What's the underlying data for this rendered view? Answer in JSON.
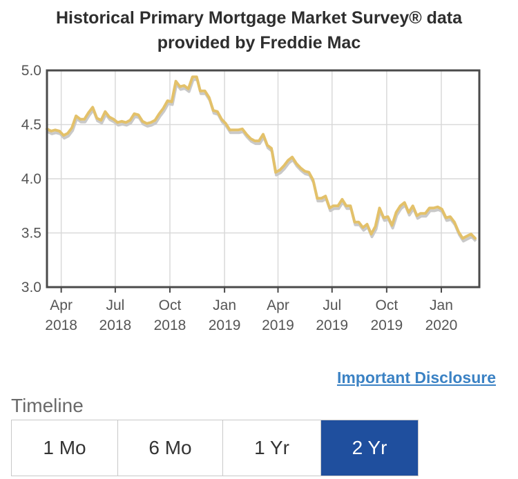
{
  "header": {
    "title_line1": "Historical Primary Mortgage Market Survey® data",
    "title_line2": "provided by Freddie Mac"
  },
  "disclosure_link": "Important Disclosure",
  "timeline": {
    "label": "Timeline",
    "options": [
      {
        "label": "1 Mo",
        "active": false
      },
      {
        "label": "6 Mo",
        "active": false
      },
      {
        "label": "1 Yr",
        "active": false
      },
      {
        "label": "2 Yr",
        "active": true
      }
    ],
    "active_color": "#1f4f9e"
  },
  "chart_data": {
    "type": "line",
    "title": "",
    "xlabel": "",
    "ylabel": "",
    "ylim": [
      3.0,
      5.0
    ],
    "yticks": [
      "5.0",
      "4.5",
      "4.0",
      "3.5",
      "3.0"
    ],
    "xticks": [
      {
        "line1": "Apr",
        "line2": "2018",
        "date": "2018-04-01"
      },
      {
        "line1": "Jul",
        "line2": "2018",
        "date": "2018-07-01"
      },
      {
        "line1": "Oct",
        "line2": "2018",
        "date": "2018-10-01"
      },
      {
        "line1": "Jan",
        "line2": "2019",
        "date": "2019-01-01"
      },
      {
        "line1": "Apr",
        "line2": "2019",
        "date": "2019-04-01"
      },
      {
        "line1": "Jul",
        "line2": "2019",
        "date": "2019-07-01"
      },
      {
        "line1": "Oct",
        "line2": "2019",
        "date": "2019-10-01"
      },
      {
        "line1": "Jan",
        "line2": "2020",
        "date": "2020-01-01"
      }
    ],
    "xlim": [
      "2018-03-08",
      "2020-03-05"
    ],
    "grid": true,
    "line_color": "#e3c16a",
    "series": [
      {
        "name": "",
        "values": [
          [
            "2018-03-08",
            4.46
          ],
          [
            "2018-03-15",
            4.44
          ],
          [
            "2018-03-22",
            4.45
          ],
          [
            "2018-03-29",
            4.44
          ],
          [
            "2018-04-05",
            4.4
          ],
          [
            "2018-04-12",
            4.42
          ],
          [
            "2018-04-19",
            4.47
          ],
          [
            "2018-04-26",
            4.58
          ],
          [
            "2018-05-03",
            4.55
          ],
          [
            "2018-05-10",
            4.55
          ],
          [
            "2018-05-17",
            4.61
          ],
          [
            "2018-05-24",
            4.66
          ],
          [
            "2018-05-31",
            4.56
          ],
          [
            "2018-06-07",
            4.54
          ],
          [
            "2018-06-14",
            4.62
          ],
          [
            "2018-06-21",
            4.57
          ],
          [
            "2018-06-28",
            4.55
          ],
          [
            "2018-07-05",
            4.52
          ],
          [
            "2018-07-12",
            4.53
          ],
          [
            "2018-07-19",
            4.52
          ],
          [
            "2018-07-26",
            4.54
          ],
          [
            "2018-08-02",
            4.6
          ],
          [
            "2018-08-09",
            4.59
          ],
          [
            "2018-08-16",
            4.53
          ],
          [
            "2018-08-23",
            4.51
          ],
          [
            "2018-08-30",
            4.52
          ],
          [
            "2018-09-06",
            4.54
          ],
          [
            "2018-09-13",
            4.6
          ],
          [
            "2018-09-20",
            4.65
          ],
          [
            "2018-09-27",
            4.72
          ],
          [
            "2018-10-04",
            4.71
          ],
          [
            "2018-10-11",
            4.9
          ],
          [
            "2018-10-18",
            4.85
          ],
          [
            "2018-10-25",
            4.86
          ],
          [
            "2018-11-01",
            4.83
          ],
          [
            "2018-11-08",
            4.94
          ],
          [
            "2018-11-15",
            4.94
          ],
          [
            "2018-11-21",
            4.81
          ],
          [
            "2018-11-29",
            4.81
          ],
          [
            "2018-12-06",
            4.75
          ],
          [
            "2018-12-13",
            4.63
          ],
          [
            "2018-12-20",
            4.62
          ],
          [
            "2018-12-27",
            4.55
          ],
          [
            "2019-01-03",
            4.51
          ],
          [
            "2019-01-10",
            4.45
          ],
          [
            "2019-01-17",
            4.45
          ],
          [
            "2019-01-24",
            4.45
          ],
          [
            "2019-01-31",
            4.46
          ],
          [
            "2019-02-07",
            4.41
          ],
          [
            "2019-02-14",
            4.37
          ],
          [
            "2019-02-21",
            4.35
          ],
          [
            "2019-02-28",
            4.35
          ],
          [
            "2019-03-07",
            4.41
          ],
          [
            "2019-03-14",
            4.31
          ],
          [
            "2019-03-21",
            4.28
          ],
          [
            "2019-03-28",
            4.06
          ],
          [
            "2019-04-04",
            4.08
          ],
          [
            "2019-04-11",
            4.12
          ],
          [
            "2019-04-18",
            4.17
          ],
          [
            "2019-04-25",
            4.2
          ],
          [
            "2019-05-02",
            4.14
          ],
          [
            "2019-05-09",
            4.1
          ],
          [
            "2019-05-16",
            4.07
          ],
          [
            "2019-05-23",
            4.06
          ],
          [
            "2019-05-30",
            3.99
          ],
          [
            "2019-06-06",
            3.82
          ],
          [
            "2019-06-13",
            3.82
          ],
          [
            "2019-06-20",
            3.84
          ],
          [
            "2019-06-27",
            3.73
          ],
          [
            "2019-07-03",
            3.75
          ],
          [
            "2019-07-11",
            3.75
          ],
          [
            "2019-07-18",
            3.81
          ],
          [
            "2019-07-25",
            3.75
          ],
          [
            "2019-08-01",
            3.75
          ],
          [
            "2019-08-08",
            3.6
          ],
          [
            "2019-08-15",
            3.6
          ],
          [
            "2019-08-22",
            3.55
          ],
          [
            "2019-08-29",
            3.58
          ],
          [
            "2019-09-05",
            3.49
          ],
          [
            "2019-09-12",
            3.56
          ],
          [
            "2019-09-19",
            3.73
          ],
          [
            "2019-09-26",
            3.64
          ],
          [
            "2019-10-03",
            3.65
          ],
          [
            "2019-10-10",
            3.57
          ],
          [
            "2019-10-17",
            3.69
          ],
          [
            "2019-10-24",
            3.75
          ],
          [
            "2019-10-31",
            3.78
          ],
          [
            "2019-11-07",
            3.69
          ],
          [
            "2019-11-14",
            3.75
          ],
          [
            "2019-11-21",
            3.66
          ],
          [
            "2019-11-27",
            3.68
          ],
          [
            "2019-12-05",
            3.68
          ],
          [
            "2019-12-12",
            3.73
          ],
          [
            "2019-12-19",
            3.73
          ],
          [
            "2019-12-26",
            3.74
          ],
          [
            "2020-01-02",
            3.72
          ],
          [
            "2020-01-09",
            3.64
          ],
          [
            "2020-01-16",
            3.65
          ],
          [
            "2020-01-23",
            3.6
          ],
          [
            "2020-01-30",
            3.51
          ],
          [
            "2020-02-06",
            3.45
          ],
          [
            "2020-02-13",
            3.47
          ],
          [
            "2020-02-20",
            3.49
          ],
          [
            "2020-02-27",
            3.45
          ]
        ]
      }
    ]
  }
}
